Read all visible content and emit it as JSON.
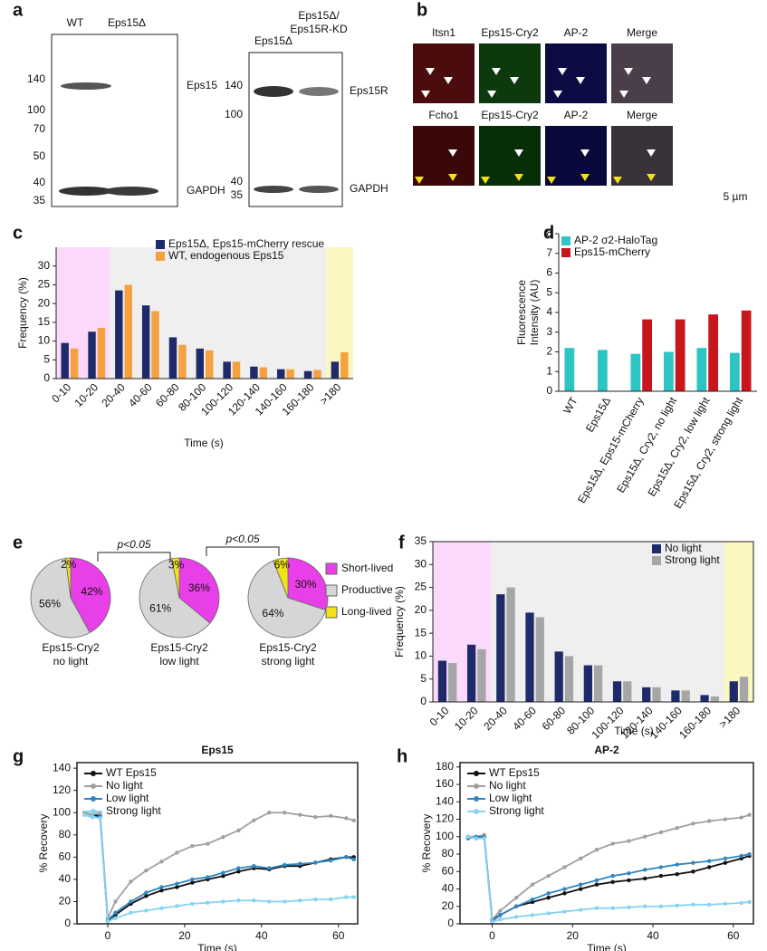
{
  "panel_labels": [
    "a",
    "b",
    "c",
    "d",
    "e",
    "f",
    "g",
    "h"
  ],
  "blot_left": {
    "lanes": [
      "WT",
      "Eps15Δ"
    ],
    "markers": [
      "140",
      "100",
      "70",
      "50",
      "40",
      "35"
    ],
    "bands": [
      "Eps15",
      "GAPDH"
    ]
  },
  "blot_right": {
    "lanes": [
      "Eps15Δ",
      "Eps15Δ/",
      "Eps15R-KD"
    ],
    "markers": [
      "140",
      "100",
      "40",
      "35"
    ],
    "bands": [
      "Eps15R",
      "GAPDH"
    ]
  },
  "microscopy": {
    "row1": [
      "Itsn1",
      "Eps15-Cry2",
      "AP-2",
      "Merge"
    ],
    "row2": [
      "Fcho1",
      "Eps15-Cry2",
      "AP-2",
      "Merge"
    ],
    "scale_bar": "5 µm"
  },
  "chart_data": [
    {
      "type": "bar",
      "ylabel": "Frequency (%)",
      "xlabel": "Time (s)",
      "categories": [
        "0-10",
        "10-20",
        "20-40",
        "40-60",
        "60-80",
        "80-100",
        "100-120",
        "120-140",
        "140-160",
        "160-180",
        ">180"
      ],
      "series": [
        {
          "name": "Eps15Δ, Eps15-mCherry rescue",
          "color": "#1f2a6b",
          "values": [
            9.5,
            12.5,
            23.5,
            19.5,
            11,
            8,
            4.5,
            3.2,
            2.5,
            2,
            4.5
          ]
        },
        {
          "name": "WT, endogenous Eps15",
          "color": "#f5a142",
          "values": [
            8,
            13.5,
            25,
            18,
            9,
            7.5,
            4.5,
            3,
            2.5,
            2.3,
            7
          ]
        }
      ],
      "ylim": [
        0,
        35
      ],
      "yticks": [
        0,
        5,
        10,
        15,
        20,
        25,
        30
      ]
    },
    {
      "type": "bar",
      "ylabel": [
        "Fluorescence",
        "Intensity (AU)"
      ],
      "categories": [
        "WT",
        "Eps15Δ",
        "Eps15Δ, Eps15-mCherry",
        "Eps15Δ, Cry2, no light",
        "Eps15Δ, Cry2, low light",
        "Eps15Δ, Cry2, strong light"
      ],
      "series": [
        {
          "name": "AP-2 σ2-HaloTag",
          "color": "#2ec4c4",
          "values": [
            2.2,
            2.1,
            1.9,
            2.0,
            2.2,
            1.95
          ]
        },
        {
          "name": "Eps15-mCherry",
          "color": "#c8161d",
          "values": [
            null,
            null,
            3.65,
            3.65,
            3.9,
            4.1
          ]
        }
      ],
      "ylim": [
        0,
        8
      ],
      "yticks": [
        0,
        1,
        2,
        3,
        4,
        5,
        6,
        7,
        8
      ]
    },
    {
      "type": "pie",
      "categories": [
        "Short-lived",
        "Productive",
        "Long-lived"
      ],
      "colors": [
        "#e83fe8",
        "#d6d6d6",
        "#f2e21b"
      ],
      "pies": [
        {
          "label": [
            "Eps15-Cry2",
            "no light"
          ],
          "values": [
            42,
            56,
            2
          ],
          "value_labels": [
            "42%",
            "56%",
            "2%"
          ]
        },
        {
          "label": [
            "Eps15-Cry2",
            "low light"
          ],
          "values": [
            36,
            61,
            3
          ],
          "value_labels": [
            "36%",
            "61%",
            "3%"
          ]
        },
        {
          "label": [
            "Eps15-Cry2",
            "strong light"
          ],
          "values": [
            30,
            64,
            6
          ],
          "value_labels": [
            "30%",
            "64%",
            "6%"
          ]
        }
      ],
      "annotations": [
        "p<0.05",
        "p<0.05"
      ]
    },
    {
      "type": "bar",
      "ylabel": "Frequency (%)",
      "xlabel": "Time (s)",
      "categories": [
        "0-10",
        "10-20",
        "20-40",
        "40-60",
        "60-80",
        "80-100",
        "100-120",
        "120-140",
        "140-160",
        "160-180",
        ">180"
      ],
      "series": [
        {
          "name": "No light",
          "color": "#1f2a6b",
          "values": [
            9,
            12.5,
            23.5,
            19.5,
            11,
            8,
            4.5,
            3.2,
            2.5,
            1.5,
            4.5
          ]
        },
        {
          "name": "Strong light",
          "color": "#a6a6a6",
          "values": [
            8.5,
            11.5,
            25,
            18.5,
            10,
            8,
            4.5,
            3.2,
            2.5,
            1.2,
            5.5
          ]
        }
      ],
      "ylim": [
        0,
        35
      ],
      "yticks": [
        0,
        5,
        10,
        15,
        20,
        25,
        30,
        35
      ]
    },
    {
      "type": "line",
      "title": "Eps15",
      "ylabel": "% Recovery",
      "xlabel": "Time (s)",
      "x": [
        -6,
        -4,
        -2,
        0,
        2,
        6,
        10,
        14,
        18,
        22,
        26,
        30,
        34,
        38,
        42,
        46,
        50,
        54,
        58,
        62,
        64
      ],
      "series": [
        {
          "name": "WT Eps15",
          "color": "#111111",
          "values": [
            100,
            98,
            97,
            3,
            8,
            18,
            25,
            30,
            33,
            37,
            40,
            43,
            47,
            50,
            49,
            52,
            52,
            55,
            58,
            60,
            60
          ]
        },
        {
          "name": "No light",
          "color": "#a0a0a0",
          "values": [
            100,
            98,
            100,
            5,
            20,
            38,
            48,
            56,
            64,
            70,
            72,
            78,
            84,
            93,
            100,
            100,
            98,
            96,
            97,
            95,
            93
          ]
        },
        {
          "name": "Low light",
          "color": "#2f86c3",
          "values": [
            98,
            96,
            96,
            3,
            10,
            20,
            28,
            33,
            36,
            40,
            42,
            46,
            50,
            52,
            50,
            53,
            54,
            55,
            57,
            60,
            58
          ]
        },
        {
          "name": "Strong light",
          "color": "#86d4f2",
          "values": [
            98,
            96,
            95,
            2,
            5,
            10,
            12,
            14,
            16,
            18,
            19,
            20,
            21,
            21,
            20,
            20,
            21,
            22,
            22,
            24,
            24
          ]
        }
      ],
      "xlim": [
        -8,
        65
      ],
      "xticks": [
        0,
        20,
        40,
        60
      ],
      "ylim": [
        0,
        145
      ],
      "yticks": [
        0,
        20,
        40,
        60,
        80,
        100,
        120,
        140
      ]
    },
    {
      "type": "line",
      "title": "AP-2",
      "ylabel": "% Recovery",
      "xlabel": "Time (s)",
      "x": [
        -6,
        -4,
        -2,
        0,
        2,
        6,
        10,
        14,
        18,
        22,
        26,
        30,
        34,
        38,
        42,
        46,
        50,
        54,
        58,
        62,
        64
      ],
      "series": [
        {
          "name": "WT Eps15",
          "color": "#111111",
          "values": [
            100,
            98,
            100,
            5,
            10,
            20,
            25,
            30,
            35,
            40,
            45,
            48,
            50,
            52,
            55,
            57,
            60,
            65,
            70,
            75,
            78
          ]
        },
        {
          "name": "No light",
          "color": "#a0a0a0",
          "values": [
            100,
            100,
            102,
            5,
            15,
            30,
            45,
            55,
            65,
            75,
            85,
            92,
            95,
            100,
            105,
            110,
            115,
            118,
            120,
            122,
            125
          ]
        },
        {
          "name": "Low light",
          "color": "#2f86c3",
          "values": [
            98,
            100,
            100,
            3,
            10,
            20,
            28,
            35,
            40,
            45,
            50,
            55,
            58,
            62,
            65,
            68,
            70,
            72,
            75,
            78,
            80
          ]
        },
        {
          "name": "Strong light",
          "color": "#86d4f2",
          "values": [
            100,
            98,
            98,
            2,
            5,
            8,
            10,
            12,
            14,
            16,
            18,
            18,
            19,
            20,
            20,
            21,
            22,
            22,
            23,
            24,
            25
          ]
        }
      ],
      "xlim": [
        -8,
        65
      ],
      "xticks": [
        0,
        20,
        40,
        60
      ],
      "ylim": [
        0,
        185
      ],
      "yticks": [
        0,
        20,
        40,
        60,
        80,
        100,
        120,
        140,
        160,
        180
      ]
    }
  ]
}
